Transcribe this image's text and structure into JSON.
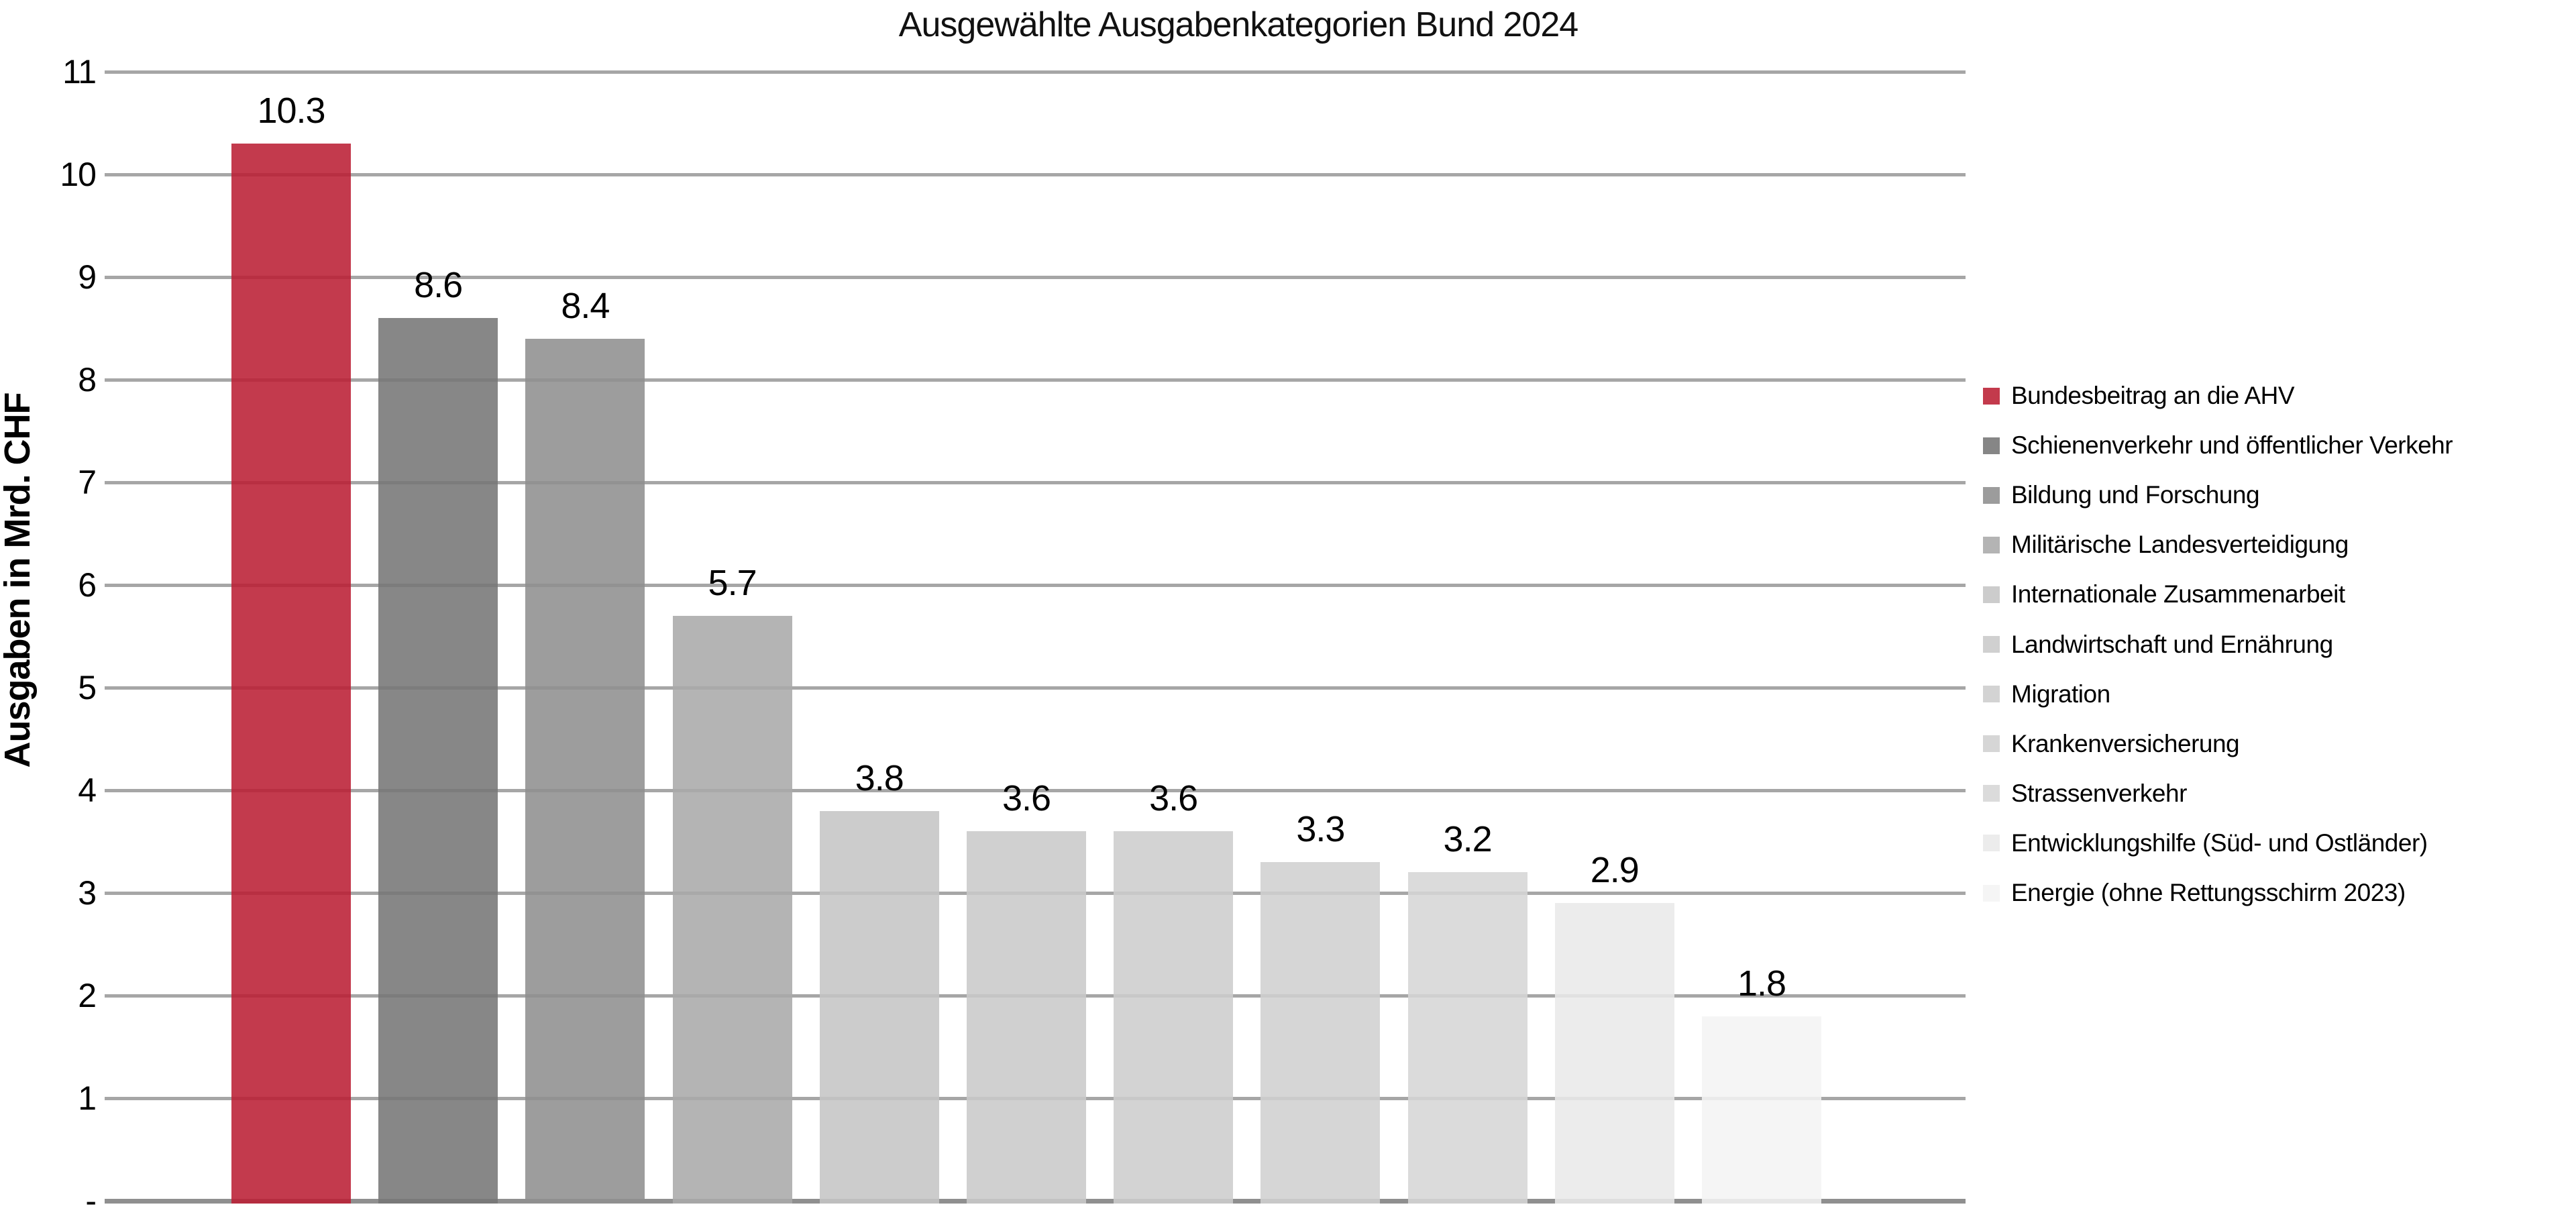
{
  "chart_data": {
    "type": "bar",
    "title": "Ausgewählte Ausgabenkategorien Bund 2024",
    "xlabel": "",
    "ylabel": "Ausgaben in Mrd. CHF",
    "ylim": [
      0,
      11
    ],
    "ytick_step": 1,
    "ytick_labels": [
      "11",
      "10",
      "9",
      "8",
      "7",
      "6",
      "5",
      "4",
      "3",
      "2",
      "1",
      "-"
    ],
    "zero_tick_label": "-",
    "grid": true,
    "gridline_color": "#A6A6A6",
    "axis_line_color": "#8F8F8F",
    "legend_position": "right",
    "accent_color": "#C33A4C",
    "categories": [
      "Bundesbeitrag an die AHV",
      "Schienenverkehr und öffentlicher Verkehr",
      "Bildung und Forschung",
      "Militärische Landesverteidigung",
      "Internationale Zusammenarbeit",
      "Landwirtschaft und Ernährung",
      "Migration",
      "Krankenversicherung",
      "Strassenverkehr",
      "Entwicklungshilfe (Süd- und Ostländer)",
      "Energie (ohne Rettungsschirm 2023)"
    ],
    "values": [
      10.3,
      8.6,
      8.4,
      5.7,
      3.8,
      3.6,
      3.6,
      3.3,
      3.2,
      2.9,
      1.8
    ],
    "value_labels": [
      "10.3",
      "8.6",
      "8.4",
      "5.7",
      "3.8",
      "3.6",
      "3.6",
      "3.3",
      "3.2",
      "2.9",
      "1.8"
    ],
    "colors": [
      "#C33A4C",
      "#868686",
      "#9C9C9C",
      "#B4B4B4",
      "#CCCCCC",
      "#D0D0D0",
      "#D3D3D3",
      "#D6D6D6",
      "#DBDBDB",
      "#ECECEC",
      "#F5F5F5"
    ]
  }
}
